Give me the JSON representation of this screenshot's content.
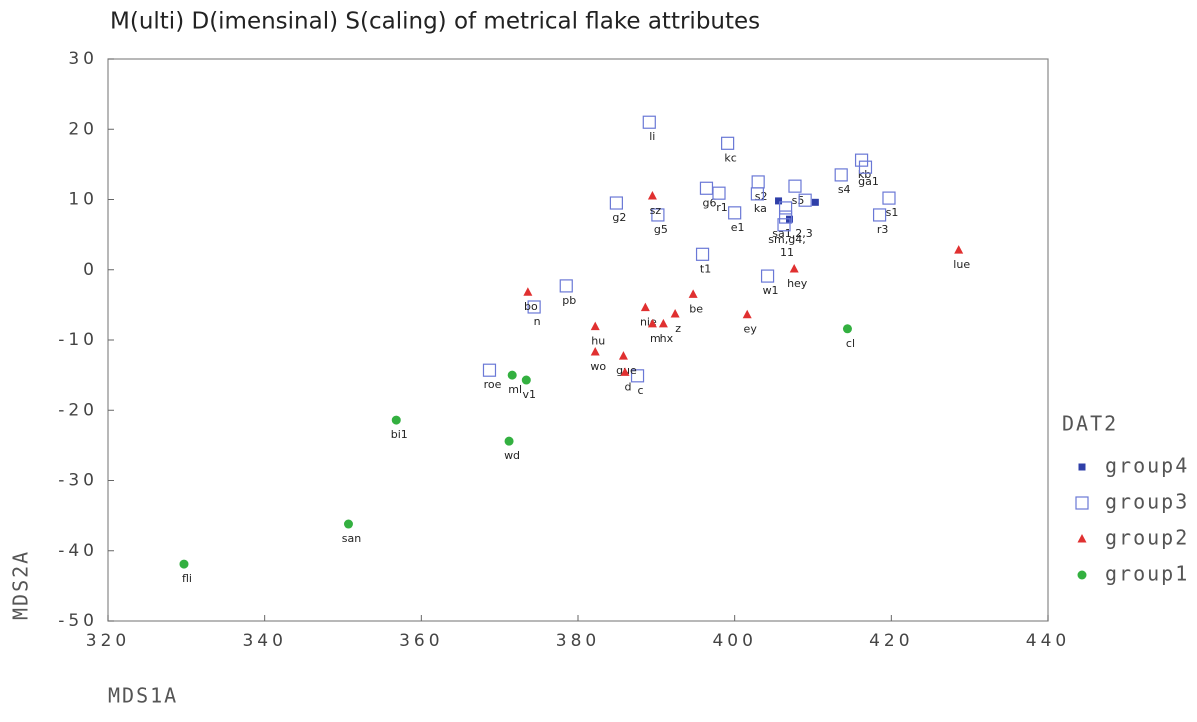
{
  "chart_data": {
    "type": "scatter",
    "title": "M(ulti) D(imensinal) S(caling) of metrical flake attributes",
    "x_label": "MDS1A",
    "y_label": "MDS2A",
    "legend_title": "DAT2",
    "xlim": [
      320,
      440
    ],
    "xticks": [
      320,
      340,
      360,
      380,
      400,
      420,
      440
    ],
    "ylim": [
      -50,
      30
    ],
    "yticks": [
      -50,
      -40,
      -30,
      -20,
      -10,
      0,
      10,
      20,
      30
    ],
    "legend": "right",
    "series": [
      {
        "name": "group4",
        "color": "#2f3fa8",
        "marker": "square-filled",
        "x": [
          405.6,
          407.0,
          410.3
        ],
        "values": [
          9.8,
          7.2,
          9.6
        ],
        "labels": [
          null,
          "sa1,2,3",
          null
        ]
      },
      {
        "name": "group3",
        "color": "#6a78d6",
        "marker": "square",
        "x": [
          389.1,
          399.1,
          416.2,
          416.7,
          403.0,
          407.7,
          413.6,
          396.4,
          398.0,
          400.0,
          384.9,
          390.2,
          395.9,
          402.9,
          419.7,
          418.5,
          404.2,
          378.5,
          374.4,
          368.7,
          387.6,
          409.0,
          406.5,
          406.5,
          406.3
        ],
        "values": [
          21.0,
          18.0,
          15.6,
          14.6,
          12.5,
          11.9,
          13.5,
          11.6,
          10.9,
          8.1,
          9.5,
          7.8,
          2.2,
          10.8,
          10.2,
          7.8,
          -0.9,
          -2.3,
          -5.3,
          -14.3,
          -15.1,
          9.9,
          8.8,
          7.5,
          6.4
        ],
        "labels": [
          "li",
          "kc",
          "kb",
          "ga1",
          "s2",
          "s5",
          "s4",
          "g6",
          "r1",
          "e1",
          "g2",
          "g5",
          "t1",
          "ka",
          "s1",
          "r3",
          "w1",
          "pb",
          "n",
          "roe",
          "c",
          null,
          null,
          null,
          "sm,g4,\n11"
        ]
      },
      {
        "name": "group2",
        "color": "#e03030",
        "marker": "triangle",
        "x": [
          389.5,
          373.6,
          388.6,
          394.7,
          382.2,
          389.5,
          390.9,
          392.4,
          385.8,
          382.2,
          386.0,
          401.6,
          407.6,
          428.6
        ],
        "values": [
          10.5,
          -3.2,
          -5.4,
          -3.5,
          -8.1,
          -7.7,
          -7.7,
          -6.3,
          -12.3,
          -11.7,
          -14.6,
          -6.4,
          0.1,
          2.8
        ],
        "labels": [
          "sz",
          "bo",
          "nie",
          "be",
          "hu",
          "m",
          "hx",
          "z",
          "gue",
          "wo",
          "d",
          "ey",
          "hey",
          "lue"
        ]
      },
      {
        "name": "group1",
        "color": "#33b040",
        "marker": "circle",
        "x": [
          414.4,
          371.6,
          373.4,
          356.8,
          371.2,
          350.7,
          329.7
        ],
        "values": [
          -8.4,
          -15.0,
          -15.7,
          -21.4,
          -24.4,
          -36.2,
          -41.9
        ],
        "labels": [
          "cl",
          "ml",
          "v1",
          "bi1",
          "wd",
          "san",
          "fli"
        ]
      }
    ]
  }
}
